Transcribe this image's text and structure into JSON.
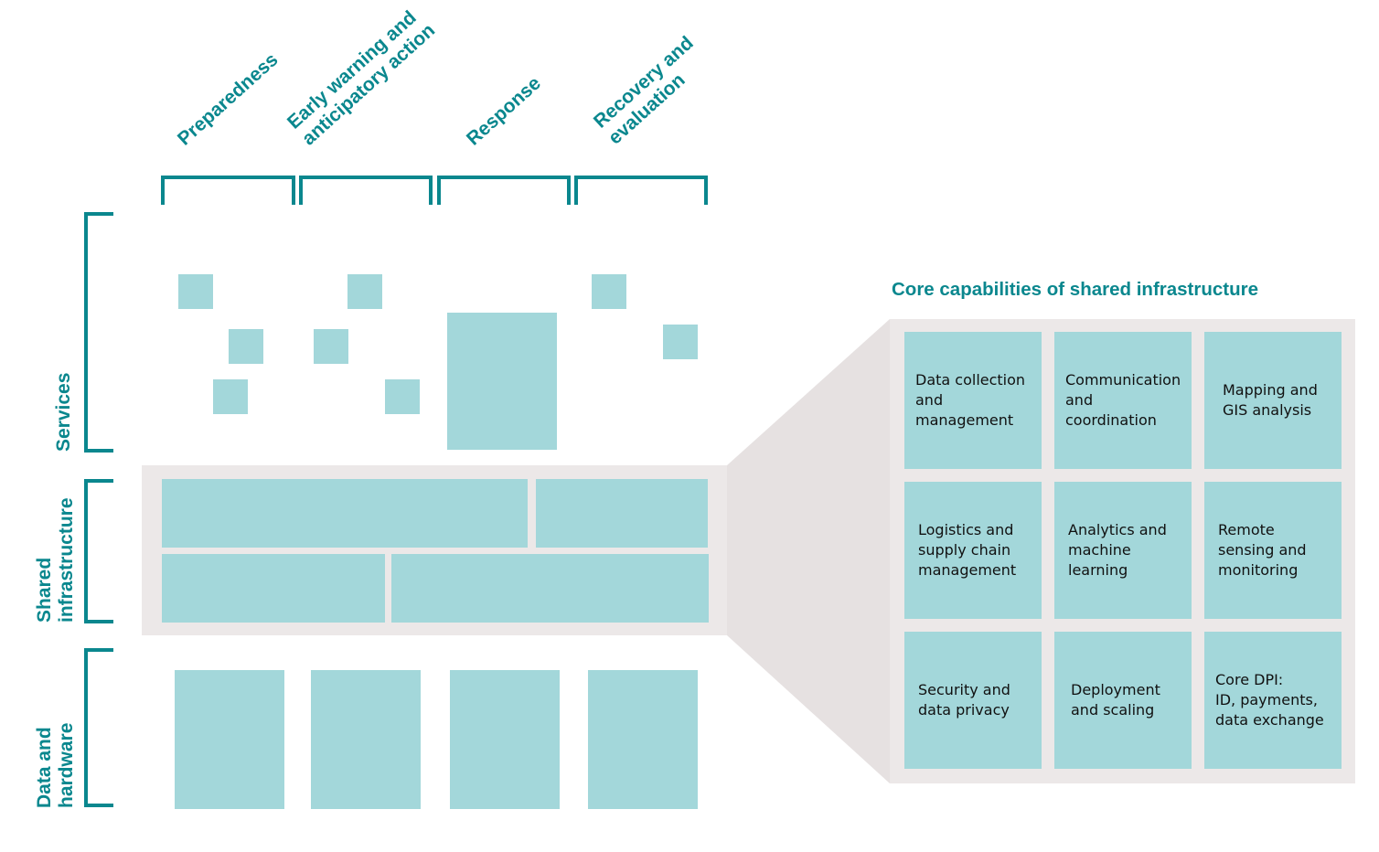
{
  "colors": {
    "accent": "#0a878e",
    "block": "#a3d7da",
    "panel": "#ece8e8",
    "funnel": "#e6e1e1"
  },
  "phases": [
    {
      "lines": [
        "Preparedness"
      ]
    },
    {
      "lines": [
        "Early warning and",
        "anticipatory action"
      ]
    },
    {
      "lines": [
        "Response"
      ]
    },
    {
      "lines": [
        "Recovery and",
        "evaluation"
      ]
    }
  ],
  "layers": [
    {
      "lines": [
        "Services"
      ]
    },
    {
      "lines": [
        "Shared",
        "infrastructure"
      ]
    },
    {
      "lines": [
        "Data and",
        "hardware"
      ]
    }
  ],
  "core": {
    "title": "Core capabilities of shared infrastructure",
    "cells": [
      "Data collection\nand\nmanagement",
      "Communication\nand\ncoordination",
      "Mapping and\nGIS analysis",
      "Logistics and\nsupply chain\nmanagement",
      "Analytics and\nmachine\nlearning",
      "Remote\nsensing and\nmonitoring",
      "Security and\ndata privacy",
      "Deployment\nand scaling",
      "Core DPI:\nID, payments,\ndata exchange"
    ]
  }
}
